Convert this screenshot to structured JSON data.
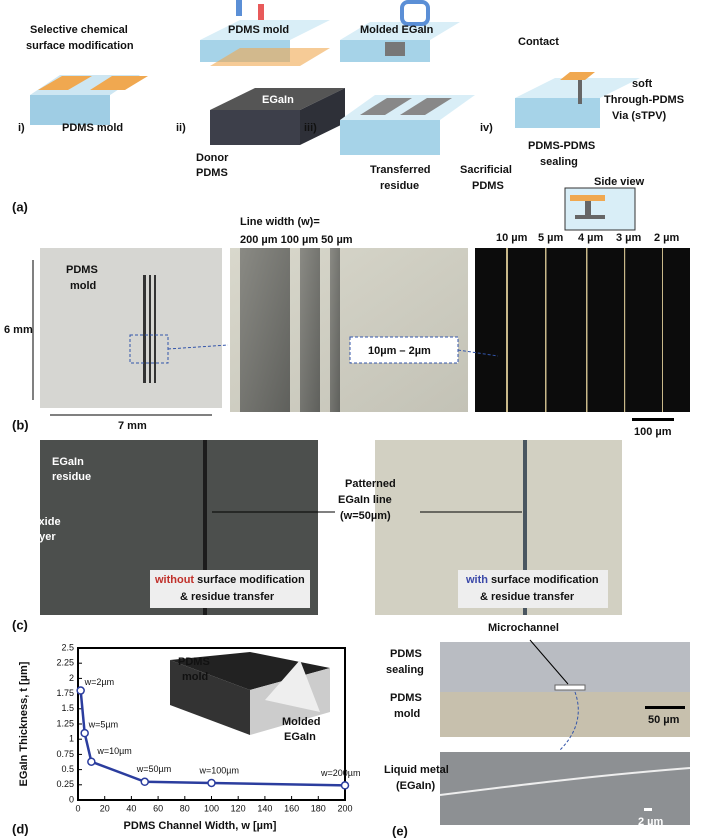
{
  "figure": {
    "a": {
      "label": "(a)",
      "step1_title": [
        "Selective chemical",
        "surface modification"
      ],
      "step1": "i)",
      "pdms_mold": "PDMS mold",
      "step2": "ii)",
      "pdms_mold_top": "PDMS mold",
      "egain": "EGaIn",
      "donor": [
        "Donor",
        "PDMS"
      ],
      "step3": "iii)",
      "molded": "Molded EGaIn",
      "transferred": [
        "Transferred",
        "residue"
      ],
      "sacrificial": [
        "Sacrificial",
        "PDMS"
      ],
      "step4": "iv)",
      "contact": "Contact",
      "stpv": [
        "soft",
        "Through-PDMS",
        "Via (sTPV)"
      ],
      "sealing": [
        "PDMS-PDMS",
        "sealing"
      ],
      "side_view": "Side view"
    },
    "b": {
      "label": "(b)",
      "line_width": "Line width (w)=",
      "widths_large": "200 µm 100 µm 50 µm",
      "mold": [
        "PDMS",
        "mold"
      ],
      "height": "6 mm",
      "width": "7 mm",
      "range": "10µm – 2µm",
      "widths_small": [
        "10 µm",
        "5 µm",
        "4 µm",
        "3 µm",
        "2 µm"
      ],
      "scale": "100 µm"
    },
    "c": {
      "label": "(c)",
      "residue": [
        "EGaIn",
        "residue"
      ],
      "oxide": [
        "Oxide",
        "layer"
      ],
      "patterned": [
        "Patterned",
        "EGaIn line",
        "(w=50µm)"
      ],
      "without": "without",
      "without_rest": [
        " surface modification",
        "& residue transfer"
      ],
      "with": "with",
      "with_rest": [
        " surface modification",
        "& residue transfer"
      ]
    },
    "d": {
      "label": "(d)",
      "inset_mold": [
        "PDMS",
        "mold"
      ],
      "inset_molded": [
        "Molded",
        "EGaIn"
      ]
    },
    "e": {
      "label": "(e)",
      "microchannel": "Microchannel",
      "sealing": [
        "PDMS",
        "sealing"
      ],
      "mold": [
        "PDMS",
        "mold"
      ],
      "scale_top": "50 µm",
      "liquid": [
        "Liquid metal",
        "(EGaIn)"
      ],
      "scale_bottom": "2 µm"
    }
  },
  "chart_data": {
    "type": "line",
    "x_label": "PDMS Channel Width, w [µm]",
    "y_label": "EGaIn Thickness, t [µm]",
    "x": [
      2,
      5,
      10,
      50,
      100,
      200
    ],
    "values": [
      1.8,
      1.1,
      0.63,
      0.3,
      0.28,
      0.24
    ],
    "annotations": [
      "w=2µm",
      "w=5µm",
      "w=10µm",
      "w=50µm",
      "w=100µm",
      "w=200µm"
    ],
    "color": "#2b3d9e",
    "xlim": [
      0,
      200
    ],
    "xticks": [
      0,
      20,
      40,
      60,
      80,
      100,
      120,
      140,
      160,
      180,
      200
    ],
    "ylim": [
      0,
      2.5
    ],
    "yticks": [
      0,
      0.25,
      0.5,
      0.75,
      1,
      1.25,
      1.5,
      1.75,
      2,
      2.25,
      2.5
    ]
  }
}
